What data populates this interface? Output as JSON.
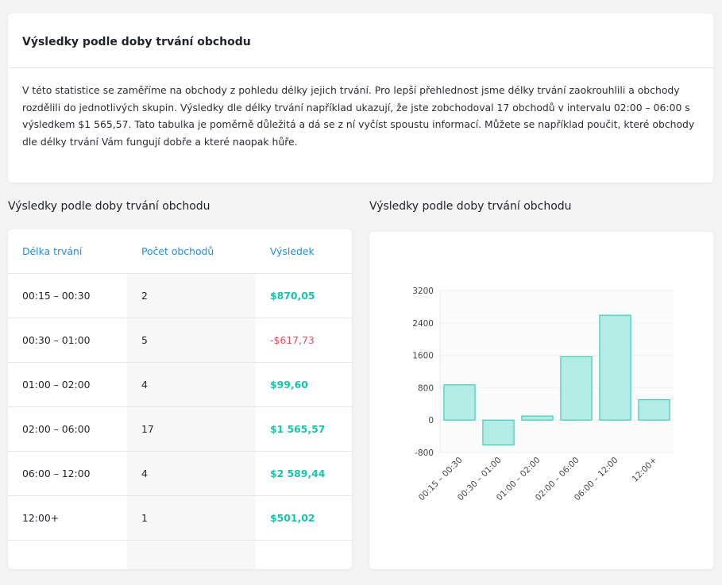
{
  "intro": {
    "title": "Výsledky podle doby trvání obchodu",
    "text": "V této statistice se zaměříme na obchody z pohledu délky jejich trvání. Pro lepší přehlednost jsme délky trvání zaokrouhlili a obchody rozdělili do jednotlivých skupin. Výsledky dle délky trvání například ukazují, že jste zobchodoval 17 obchodů v intervalu 02:00 – 06:00 s výsledkem $1 565,57. Tato tabulka je poměrně důležitá a dá se z ní vyčíst spoustu informací. Můžete se například poučit, které obchody dle délky trvání Vám fungují dobře a které naopak hůře."
  },
  "table_section": {
    "title": "Výsledky podle doby trvání obchodu",
    "headers": [
      "Délka trvání",
      "Počet obchodů",
      "Výsledek"
    ],
    "rows": [
      {
        "duration": "00:15 – 00:30",
        "count": "2",
        "result": "$870,05",
        "sign": "pos"
      },
      {
        "duration": "00:30 – 01:00",
        "count": "5",
        "result": "-$617,73",
        "sign": "neg"
      },
      {
        "duration": "01:00 – 02:00",
        "count": "4",
        "result": "$99,60",
        "sign": "pos"
      },
      {
        "duration": "02:00 – 06:00",
        "count": "17",
        "result": "$1 565,57",
        "sign": "pos"
      },
      {
        "duration": "06:00 – 12:00",
        "count": "4",
        "result": "$2 589,44",
        "sign": "pos"
      },
      {
        "duration": "12:00+",
        "count": "1",
        "result": "$501,02",
        "sign": "pos"
      }
    ]
  },
  "chart_section": {
    "title": "Výsledky podle doby trvání obchodu"
  },
  "colors": {
    "positive": "#16c4a8",
    "negative": "#ec4b5a",
    "header_link": "#1f8ee0",
    "bar_fill": "#b2ece4",
    "bar_stroke": "#20c6ad"
  },
  "chart_data": {
    "type": "bar",
    "title": "",
    "xlabel": "",
    "ylabel": "",
    "categories": [
      "00:15 – 00:30",
      "00:30 – 01:00",
      "01:00 – 02:00",
      "02:00 – 06:00",
      "06:00 – 12:00",
      "12:00+"
    ],
    "values": [
      870.05,
      -617.73,
      99.6,
      1565.57,
      2589.44,
      501.02
    ],
    "yticks": [
      3200,
      2400,
      1600,
      800,
      0,
      -800
    ],
    "ylim": [
      -800,
      3200
    ],
    "grid": true
  }
}
